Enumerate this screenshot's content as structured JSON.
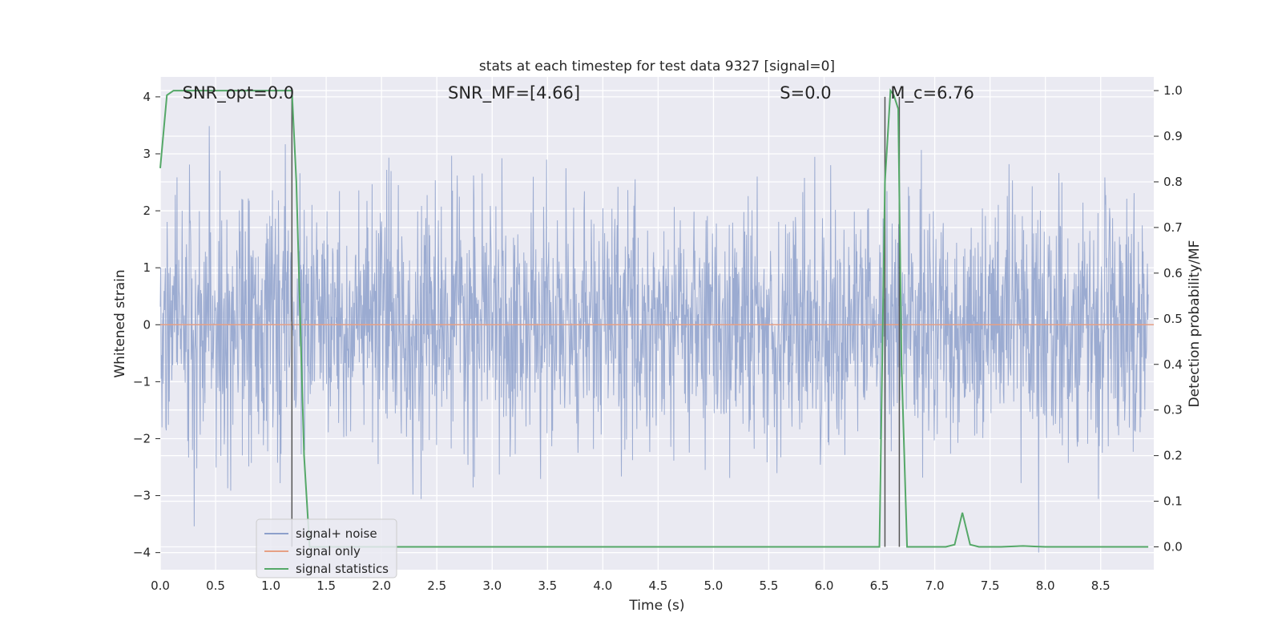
{
  "chart_data": {
    "type": "line",
    "title": "stats at each timestep for test data 9327 [signal=0]",
    "xlabel": "Time (s)",
    "ylabel_left": "Whitened strain",
    "ylabel_right": "Detection probability/MF",
    "xlim": [
      0.0,
      8.98
    ],
    "ylim_left": [
      -4.3,
      4.35
    ],
    "ylim_right": [
      -0.05,
      1.03
    ],
    "xticks": [
      "0.0",
      "0.5",
      "1.0",
      "1.5",
      "2.0",
      "2.5",
      "3.0",
      "3.5",
      "4.0",
      "4.5",
      "5.0",
      "5.5",
      "6.0",
      "6.5",
      "7.0",
      "7.5",
      "8.0",
      "8.5"
    ],
    "yticks_left": [
      "4",
      "3",
      "2",
      "1",
      "0",
      "−1",
      "−2",
      "−3",
      "−4"
    ],
    "yticks_right": [
      "1.0",
      "0.9",
      "0.8",
      "0.7",
      "0.6",
      "0.5",
      "0.4",
      "0.3",
      "0.2",
      "0.1",
      "0.0"
    ],
    "grid": true,
    "annotations": [
      {
        "text": "SNR_opt=0.0",
        "x": 0.2
      },
      {
        "text": "SNR_MF=[4.66]",
        "x": 2.6
      },
      {
        "text": "S=0.0",
        "x": 5.6
      },
      {
        "text": "M_c=6.76",
        "x": 6.6
      }
    ],
    "legend": {
      "placement": "lower-left",
      "entries": [
        {
          "label": "signal+ noise",
          "color": "#8da0cb"
        },
        {
          "label": "signal only",
          "color": "#e6a085"
        },
        {
          "label": "signal statistics",
          "color": "#55a868"
        }
      ]
    },
    "series": [
      {
        "name": "signal+ noise",
        "color": "#8da0cb",
        "axis": "left",
        "description_range": [
          -4.0,
          4.0
        ],
        "sample_count": 2300,
        "amplitude_std": 1.0
      },
      {
        "name": "signal only",
        "color": "#e6a085",
        "axis": "left",
        "x": [
          0.0,
          8.98
        ],
        "y": [
          0.0,
          0.0
        ]
      },
      {
        "name": "signal statistics",
        "color": "#55a868",
        "axis": "right",
        "x": [
          0.0,
          0.06,
          0.12,
          0.2,
          0.4,
          0.6,
          0.8,
          1.0,
          1.15,
          1.19,
          1.23,
          1.3,
          1.35,
          1.5,
          2.0,
          3.0,
          4.0,
          5.0,
          6.0,
          6.4,
          6.5,
          6.55,
          6.6,
          6.63,
          6.67,
          6.7,
          6.75,
          6.8,
          7.0,
          7.1,
          7.18,
          7.25,
          7.32,
          7.4,
          7.6,
          7.8,
          7.9,
          8.0,
          8.5,
          8.93
        ],
        "y": [
          0.83,
          0.99,
          1.0,
          1.0,
          1.0,
          1.0,
          1.0,
          1.0,
          1.0,
          1.0,
          0.8,
          0.2,
          0.0,
          0.0,
          0.0,
          0.0,
          0.0,
          0.0,
          0.0,
          0.0,
          0.0,
          0.8,
          1.0,
          0.99,
          0.96,
          0.4,
          0.0,
          0.0,
          0.0,
          0.0,
          0.005,
          0.075,
          0.005,
          0.0,
          0.0,
          0.002,
          0.001,
          0.0,
          0.0,
          0.0
        ]
      }
    ],
    "vertical_markers": [
      1.19,
      6.55,
      6.68
    ]
  }
}
